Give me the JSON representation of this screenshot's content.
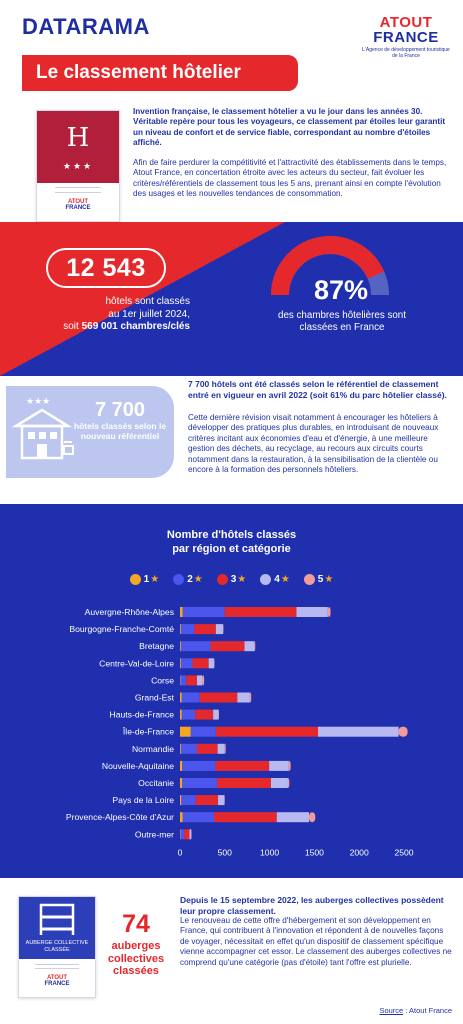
{
  "header": {
    "brand": "DATARAMA",
    "title": "Le classement hôtelier",
    "logo_line1": "ATOUT",
    "logo_line2": "FRANCE",
    "logo_tagline": "L'Agence de développement touristique de la France"
  },
  "plaque": {
    "letter": "H",
    "stars": "★★★",
    "logo_line1": "ATOUT",
    "logo_line2": "FRANCE"
  },
  "intro": {
    "bold": "Invention française, le classement hôtelier a vu le jour dans les années 30. Véritable repère pour tous les voyageurs, ce classement par étoiles leur garantit un niveau de confort et de service fiable, correspondant au nombre d'étoiles affiché.",
    "body": "Afin de faire perdurer la compétitivité et l'attractivité des établissements dans le temps, Atout France, en concertation étroite avec les acteurs du secteur, fait évoluer les critères/référentiels de classement tous les 5 ans, prenant ainsi en compte l'évolution des usages et les nouvelles tendances de consommation."
  },
  "stats": {
    "hotels_count": "12 543",
    "hotels_label_1": "hôtels sont classés",
    "hotels_label_2": "au 1er juillet 2024,",
    "hotels_label_3_pre": "soit ",
    "hotels_label_3_bold": "569 001 chambres/clés",
    "rooms_pct": "87%",
    "rooms_pct_value": 87,
    "rooms_label": "des chambres hôtelières sont classées en France"
  },
  "revision": {
    "count": "7 700",
    "count_label": "hôtels classés selon le nouveau référentiel",
    "bold": "7 700 hôtels ont été classés selon le référentiel de classement entré en vigueur en avril 2022 (soit 61% du parc hôtelier classé).",
    "body": "Cette dernière révision visait notamment à encourager les hôteliers à développer des pratiques plus durables, en introduisant de nouveaux critères incitant aux économies d'eau et d'énergie, à une meilleure gestion des déchets, au recyclage, au recours aux circuits courts notamment dans la restauration, à la sensibilisation de la clientèle ou encore à la formation des personnels hôteliers."
  },
  "colors": {
    "blue": "#1f2fae",
    "red": "#e4282c",
    "star1": "#f5a623",
    "star2": "#4a56ec",
    "star3": "#e4282c",
    "star4": "#b9b9f2",
    "star5": "#f39a9a"
  },
  "chart_data": {
    "type": "bar",
    "stacked": true,
    "orientation": "horizontal",
    "title_line1": "Nombre d'hôtels classés",
    "title_line2": "par région et catégorie",
    "categories": [
      "Auvergne-Rhône-Alpes",
      "Bourgogne-Franche-Comté",
      "Bretagne",
      "Centre-Val-de-Loire",
      "Corse",
      "Grand-Est",
      "Hauts-de-France",
      "Île-de-France",
      "Normandie",
      "Nouvelle-Aquitaine",
      "Occitanie",
      "Pays de la Loire",
      "Provence-Alpes-Côte d'Azur",
      "Outre-mer"
    ],
    "series": [
      {
        "name": "1",
        "values": [
          30,
          10,
          10,
          10,
          5,
          20,
          20,
          120,
          10,
          25,
          25,
          15,
          30,
          5
        ]
      },
      {
        "name": "2",
        "values": [
          470,
          150,
          330,
          130,
          65,
          200,
          150,
          280,
          180,
          370,
          390,
          160,
          350,
          40
        ]
      },
      {
        "name": "3",
        "values": [
          800,
          240,
          380,
          180,
          120,
          420,
          200,
          1140,
          230,
          600,
          600,
          250,
          700,
          60
        ]
      },
      {
        "name": "4",
        "values": [
          350,
          80,
          110,
          60,
          60,
          140,
          60,
          900,
          80,
          220,
          190,
          70,
          360,
          20
        ]
      },
      {
        "name": "5",
        "values": [
          30,
          5,
          10,
          5,
          20,
          15,
          5,
          100,
          10,
          20,
          15,
          5,
          70,
          5
        ]
      }
    ],
    "xlim": [
      0,
      2500
    ],
    "xticks": [
      0,
      500,
      1000,
      1500,
      2000,
      2500
    ],
    "legend_position": "top",
    "grid": false
  },
  "auberges": {
    "plaque_label": "AUBERGE COLLECTIVE CLASSÉE",
    "logo_line1": "ATOUT",
    "logo_line2": "FRANCE",
    "count": "74",
    "count_label": "auberges collectives classées",
    "bold": "Depuis le 15 septembre 2022, les auberges collectives possèdent leur propre classement.",
    "body": "Le renouveau de cette offre d'hébergement et son développement en France, qui contribuent à l'innovation et répondent à de nouvelles façons de voyager, nécessitait en effet qu'un dispositif de classement spécifique vienne accompagner cet essor. Le classement des auberges collectives ne comprend qu'une catégorie (pas d'étoile) tant l'offre est plurielle."
  },
  "source": {
    "label": "Source",
    "value": "Atout France"
  }
}
